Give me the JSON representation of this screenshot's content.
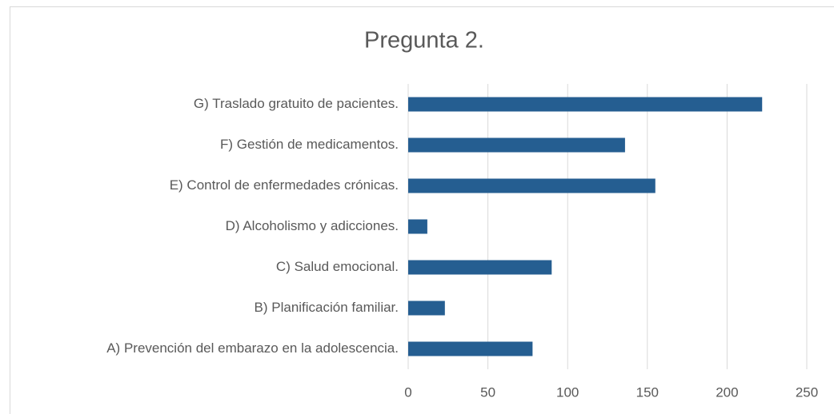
{
  "chart_data": {
    "type": "bar",
    "orientation": "horizontal",
    "title": "Pregunta 2.",
    "categories": [
      "A) Prevención del embarazo en la adolescencia.",
      "B) Planificación familiar.",
      "C) Salud emocional.",
      "D) Alcoholismo y adicciones.",
      "E) Control de enfermedades crónicas.",
      "F) Gestión de medicamentos.",
      "G) Traslado gratuito de pacientes."
    ],
    "values": [
      78,
      23,
      90,
      12,
      155,
      136,
      222
    ],
    "color": "#255e91",
    "xlim": [
      0,
      250
    ],
    "xticks": [
      0,
      50,
      100,
      150,
      200,
      250
    ],
    "grid": true
  }
}
